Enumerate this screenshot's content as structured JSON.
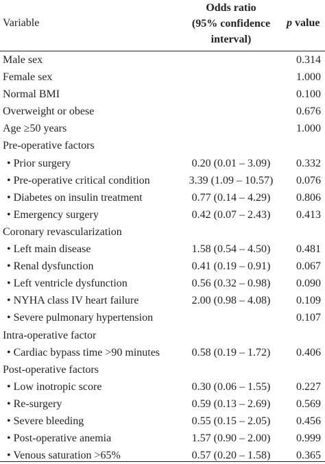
{
  "header": {
    "variable": "Variable",
    "odds_ratio_line1": "Odds ratio",
    "odds_ratio_line2": "(95% confidence",
    "odds_ratio_line3": "interval)",
    "p_italic": "p",
    "p_word": "value"
  },
  "rows": [
    {
      "variable": "Male sex",
      "odds_ratio": "",
      "p": "0.314"
    },
    {
      "variable": "Female sex",
      "odds_ratio": "",
      "p": "1.000"
    },
    {
      "variable": "Normal BMI",
      "odds_ratio": "",
      "p": "0.100"
    },
    {
      "variable": "Overweight or obese",
      "odds_ratio": "",
      "p": "0.676"
    },
    {
      "variable": "Age ≥50 years",
      "odds_ratio": "",
      "p": "1.000"
    },
    {
      "variable": "Pre-operative factors",
      "odds_ratio": "",
      "p": ""
    },
    {
      "variable": "• Prior surgery",
      "odds_ratio": "0.20 (0.01 – 3.09)",
      "p": "0.332"
    },
    {
      "variable": "• Pre-operative critical condition",
      "odds_ratio": "3.39 (1.09 – 10.57)",
      "p": "0.076"
    },
    {
      "variable": "• Diabetes on insulin treatment",
      "odds_ratio": "0.77 (0.14 – 4.29)",
      "p": "0.806"
    },
    {
      "variable": "• Emergency surgery",
      "odds_ratio": "0.42 (0.07 – 2.43)",
      "p": "0.413"
    },
    {
      "variable": "Coronary revascularization",
      "odds_ratio": "",
      "p": ""
    },
    {
      "variable": "• Left main disease",
      "odds_ratio": "1.58 (0.54 – 4.50)",
      "p": "0.481"
    },
    {
      "variable": "• Renal dysfunction",
      "odds_ratio": "0.41 (0.19 – 0.91)",
      "p": "0.067"
    },
    {
      "variable": "• Left ventricle dysfunction",
      "odds_ratio": "0.56 (0.32 – 0.98)",
      "p": "0.090"
    },
    {
      "variable": "• NYHA class IV heart failure",
      "odds_ratio": "2.00 (0.98 – 4.08)",
      "p": "0.109"
    },
    {
      "variable": "• Severe pulmonary hypertension",
      "odds_ratio": "",
      "p": "0.107"
    },
    {
      "variable": "Intra-operative factor",
      "odds_ratio": "",
      "p": ""
    },
    {
      "variable": "• Cardiac bypass time >90 minutes",
      "odds_ratio": "0.58 (0.19 – 1.72)",
      "p": "0.406"
    },
    {
      "variable": "Post-operative factors",
      "odds_ratio": "",
      "p": ""
    },
    {
      "variable": "• Low inotropic score",
      "odds_ratio": "0.30 (0.06 – 1.55)",
      "p": "0.227"
    },
    {
      "variable": "• Re-surgery",
      "odds_ratio": "0.59 (0.13 – 2.69)",
      "p": "0.569"
    },
    {
      "variable": "• Severe bleeding",
      "odds_ratio": "0.55 (0.15 – 2.05)",
      "p": "0.456"
    },
    {
      "variable": "• Post-operative anemia",
      "odds_ratio": "1.57 (0.90 – 2.00)",
      "p": "0.999"
    },
    {
      "variable": "• Venous saturation >65%",
      "odds_ratio": "0.57 (0.20 – 1.58)",
      "p": "0.365"
    }
  ]
}
